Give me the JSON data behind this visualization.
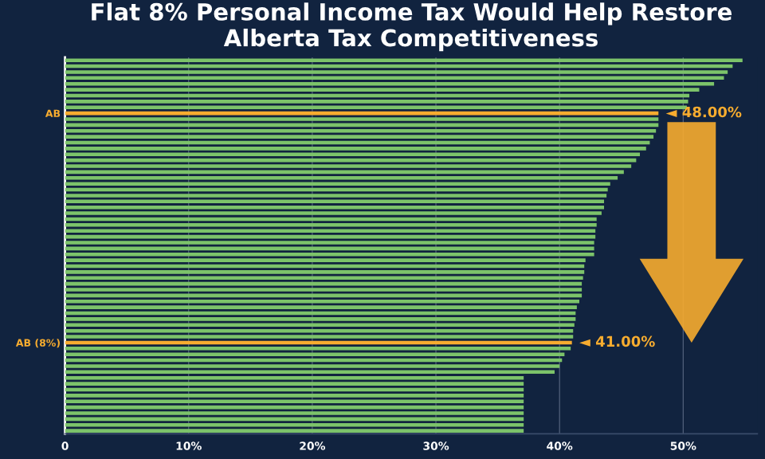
{
  "chart_data": {
    "type": "bar",
    "orientation": "horizontal",
    "title": "Flat 8% Personal Income Tax Would Help Restore\nAlberta Tax Competitiveness",
    "categories": [
      null,
      null,
      null,
      null,
      null,
      null,
      null,
      null,
      null,
      "AB",
      null,
      null,
      null,
      null,
      null,
      null,
      null,
      null,
      null,
      null,
      null,
      null,
      null,
      null,
      null,
      null,
      null,
      null,
      null,
      null,
      null,
      null,
      null,
      null,
      null,
      null,
      null,
      null,
      null,
      null,
      null,
      null,
      null,
      null,
      null,
      null,
      null,
      null,
      "AB (8%)",
      null,
      null,
      null,
      null,
      null,
      null,
      null,
      null,
      null,
      null,
      null,
      null,
      null,
      null,
      null
    ],
    "values": [
      54.8,
      54.0,
      53.6,
      53.3,
      52.5,
      51.3,
      50.5,
      50.4,
      50.3,
      48.0,
      48.0,
      48.0,
      47.8,
      47.6,
      47.3,
      47.0,
      46.5,
      46.2,
      45.8,
      45.2,
      44.7,
      44.1,
      43.9,
      43.8,
      43.6,
      43.6,
      43.4,
      43.0,
      43.0,
      42.9,
      42.9,
      42.8,
      42.8,
      42.8,
      42.1,
      42.0,
      42.0,
      41.9,
      41.8,
      41.8,
      41.8,
      41.6,
      41.4,
      41.3,
      41.3,
      41.2,
      41.1,
      41.1,
      41.0,
      40.9,
      40.4,
      40.2,
      40.0,
      39.6,
      37.1,
      37.1,
      37.1,
      37.1,
      37.1,
      37.1,
      37.1,
      37.1,
      37.1,
      37.1
    ],
    "colors": [
      "#7cc36a",
      "#7cc36a",
      "#7cc36a",
      "#7cc36a",
      "#7cc36a",
      "#7cc36a",
      "#7cc36a",
      "#7cc36a",
      "#7cc36a",
      "#f7ac2f",
      "#7cc36a",
      "#7cc36a",
      "#7cc36a",
      "#7cc36a",
      "#7cc36a",
      "#7cc36a",
      "#7cc36a",
      "#7cc36a",
      "#7cc36a",
      "#7cc36a",
      "#7cc36a",
      "#7cc36a",
      "#7cc36a",
      "#7cc36a",
      "#7cc36a",
      "#7cc36a",
      "#7cc36a",
      "#7cc36a",
      "#7cc36a",
      "#7cc36a",
      "#7cc36a",
      "#7cc36a",
      "#7cc36a",
      "#7cc36a",
      "#7cc36a",
      "#7cc36a",
      "#7cc36a",
      "#7cc36a",
      "#7cc36a",
      "#7cc36a",
      "#7cc36a",
      "#7cc36a",
      "#7cc36a",
      "#7cc36a",
      "#7cc36a",
      "#7cc36a",
      "#7cc36a",
      "#7cc36a",
      "#f7ac2f",
      "#7cc36a",
      "#7cc36a",
      "#7cc36a",
      "#7cc36a",
      "#7cc36a",
      "#7cc36a",
      "#7cc36a",
      "#7cc36a",
      "#7cc36a",
      "#7cc36a",
      "#7cc36a",
      "#7cc36a",
      "#7cc36a",
      "#7cc36a",
      "#7cc36a"
    ],
    "value_labels": [
      null,
      null,
      null,
      null,
      null,
      null,
      null,
      null,
      null,
      "◄ 48.00%",
      null,
      null,
      null,
      null,
      null,
      null,
      null,
      null,
      null,
      null,
      null,
      null,
      null,
      null,
      null,
      null,
      null,
      null,
      null,
      null,
      null,
      null,
      null,
      null,
      null,
      null,
      null,
      null,
      null,
      null,
      null,
      null,
      null,
      null,
      null,
      null,
      null,
      null,
      "◄ 41.00%",
      null,
      null,
      null,
      null,
      null,
      null,
      null,
      null,
      null,
      null,
      null,
      null,
      null,
      null,
      null
    ],
    "xlim": [
      0,
      56
    ],
    "xticks": [
      {
        "value": 0,
        "label": "0"
      },
      {
        "value": 10,
        "label": "10%"
      },
      {
        "value": 20,
        "label": "20%"
      },
      {
        "value": 30,
        "label": "30%"
      },
      {
        "value": 40,
        "label": "40%"
      },
      {
        "value": 50,
        "label": "50%"
      }
    ],
    "grid": "x"
  }
}
